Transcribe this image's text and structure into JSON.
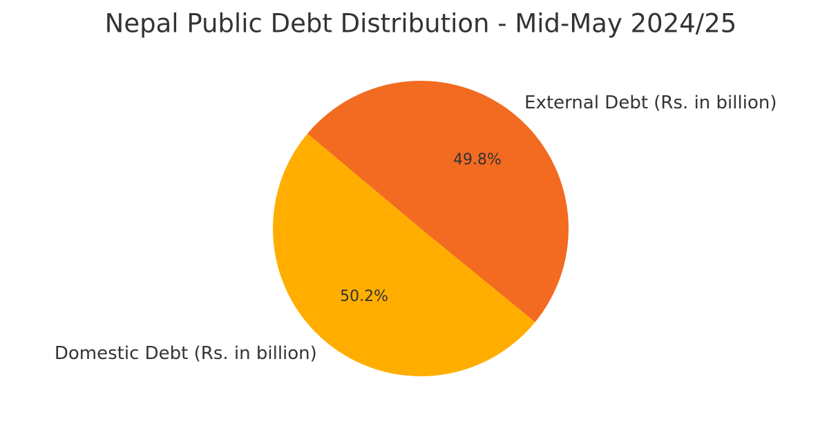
{
  "chart_data": {
    "type": "pie",
    "title": "Nepal Public Debt Distribution - Mid-May 2024/25",
    "categories": [
      "Domestic Debt (Rs. in billion)",
      "External Debt (Rs. in billion)"
    ],
    "values": [
      50.2,
      49.8
    ],
    "value_labels": [
      "50.2%",
      "49.8%"
    ],
    "colors": [
      "#ffae00",
      "#f26b21"
    ]
  }
}
